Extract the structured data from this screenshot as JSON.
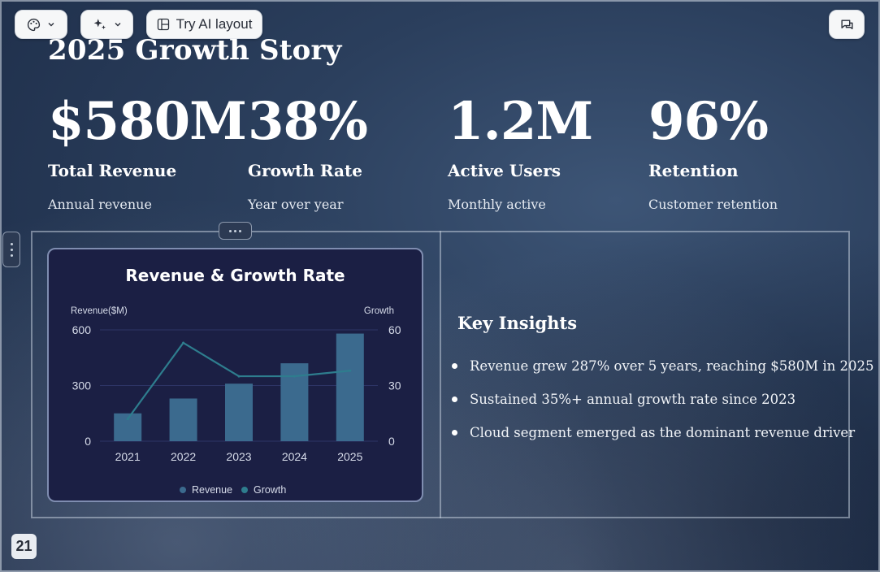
{
  "toolbar": {
    "theme_icon": "palette-icon",
    "ai_icon": "sparkles-icon",
    "layout_label": "Try AI layout",
    "layout_icon": "layout-icon",
    "comment_icon": "comment-icon"
  },
  "slide": {
    "title": "2025 Growth Story",
    "page_number": "21"
  },
  "stats": [
    {
      "value": "$580M",
      "label": "Total Revenue",
      "desc": "Annual revenue"
    },
    {
      "value": "38%",
      "label": "Growth Rate",
      "desc": "Year over year"
    },
    {
      "value": "1.2M",
      "label": "Active Users",
      "desc": "Monthly active"
    },
    {
      "value": "96%",
      "label": "Retention",
      "desc": "Customer retention"
    }
  ],
  "insights": {
    "heading": "Key Insights",
    "items": [
      "Revenue grew 287% over 5 years, reaching $580M in 2025",
      "Sustained 35%+ annual growth rate since 2023",
      "Cloud segment emerged as the dominant revenue driver"
    ]
  },
  "chart_data": {
    "type": "bar",
    "title": "Revenue & Growth Rate",
    "categories": [
      "2021",
      "2022",
      "2023",
      "2024",
      "2025"
    ],
    "series": [
      {
        "name": "Revenue",
        "type": "bar",
        "axis": "left",
        "values": [
          150,
          230,
          310,
          420,
          580
        ],
        "color": "#3b6a8e"
      },
      {
        "name": "Growth",
        "type": "line",
        "axis": "right",
        "values": [
          12,
          53,
          35,
          35,
          38
        ],
        "color": "#2e7d8e"
      }
    ],
    "ylabel": "Revenue($M)",
    "y2label": "Growth",
    "ylim": [
      0,
      600
    ],
    "y2lim": [
      0,
      60
    ],
    "yticks": [
      "0",
      "300",
      "600"
    ],
    "y2ticks": [
      "0",
      "30",
      "60"
    ],
    "grid": true,
    "legend": "bottom"
  },
  "colors": {
    "card_bg": "#1b1f44",
    "bar": "#3b6a8e",
    "line": "#2e7d8e"
  }
}
